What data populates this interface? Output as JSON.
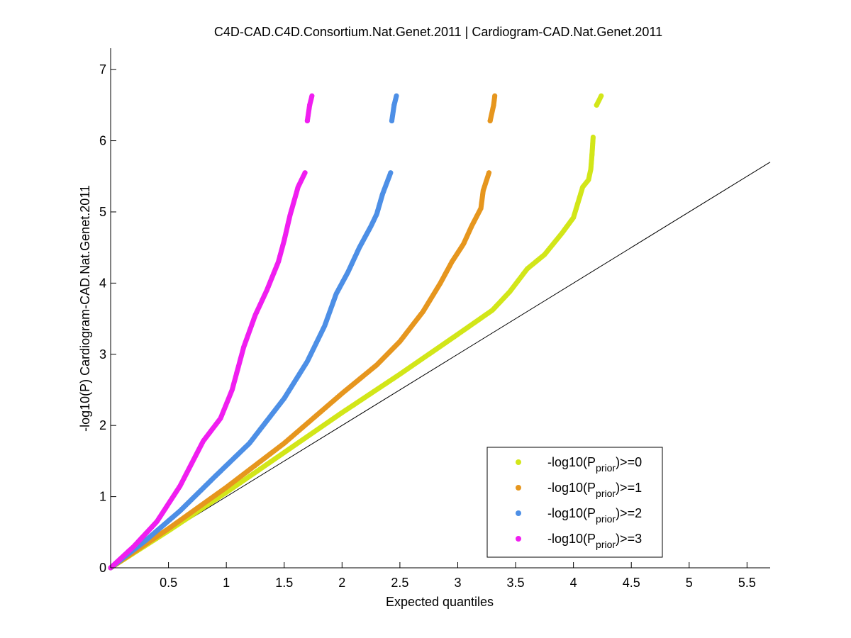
{
  "chart_data": {
    "type": "scatter",
    "title": "C4D-CAD.C4D.Consortium.Nat.Genet.2011 | Cardiogram-CAD.Nat.Genet.2011",
    "xlabel": "Expected quantiles",
    "ylabel": "-log10(P) Cardiogram-CAD.Nat.Genet.2011",
    "xlim": [
      0,
      5.7
    ],
    "ylim": [
      0,
      7.3
    ],
    "xticks": [
      0.5,
      1,
      1.5,
      2,
      2.5,
      3,
      3.5,
      4,
      4.5,
      5,
      5.5
    ],
    "xtick_labels": [
      "0.5",
      "1",
      "1.5",
      "2",
      "2.5",
      "3",
      "3.5",
      "4",
      "4.5",
      "5",
      "5.5"
    ],
    "yticks": [
      0,
      1,
      2,
      3,
      4,
      5,
      6,
      7
    ],
    "ytick_labels": [
      "0",
      "1",
      "2",
      "3",
      "4",
      "5",
      "6",
      "7"
    ],
    "grid": false,
    "legend_position": "bottom-right",
    "reference_line": {
      "x": [
        0,
        5.7
      ],
      "y": [
        0,
        5.7
      ],
      "color": "#000000"
    },
    "series": [
      {
        "name_main": "-log10(P",
        "name_sub": "prior",
        "name_tail": ")>=0",
        "color": "#d2e619",
        "points": [
          [
            0,
            0
          ],
          [
            0.5,
            0.52
          ],
          [
            1,
            1.06
          ],
          [
            1.5,
            1.62
          ],
          [
            2,
            2.18
          ],
          [
            2.5,
            2.72
          ],
          [
            3,
            3.28
          ],
          [
            3.3,
            3.62
          ],
          [
            3.45,
            3.88
          ],
          [
            3.6,
            4.2
          ],
          [
            3.75,
            4.4
          ],
          [
            3.9,
            4.7
          ],
          [
            4.0,
            4.92
          ],
          [
            4.08,
            5.35
          ],
          [
            4.13,
            5.45
          ],
          [
            4.15,
            5.6
          ],
          [
            4.16,
            5.8
          ],
          [
            4.17,
            6.05
          ],
          [
            4.2,
            6.5
          ],
          [
            4.24,
            6.63
          ]
        ]
      },
      {
        "name_main": "-log10(P",
        "name_sub": "prior",
        "name_tail": ")>=1",
        "color": "#e6961e",
        "points": [
          [
            0,
            0
          ],
          [
            0.5,
            0.55
          ],
          [
            1,
            1.13
          ],
          [
            1.5,
            1.75
          ],
          [
            2,
            2.45
          ],
          [
            2.3,
            2.85
          ],
          [
            2.5,
            3.18
          ],
          [
            2.7,
            3.6
          ],
          [
            2.85,
            4.0
          ],
          [
            2.95,
            4.3
          ],
          [
            3.05,
            4.55
          ],
          [
            3.12,
            4.8
          ],
          [
            3.2,
            5.05
          ],
          [
            3.22,
            5.3
          ],
          [
            3.27,
            5.55
          ],
          [
            3.28,
            6.28
          ],
          [
            3.31,
            6.5
          ],
          [
            3.32,
            6.63
          ]
        ]
      },
      {
        "name_main": "-log10(P",
        "name_sub": "prior",
        "name_tail": ")>=2",
        "color": "#4d8fe6",
        "points": [
          [
            0,
            0
          ],
          [
            0.3,
            0.38
          ],
          [
            0.6,
            0.8
          ],
          [
            0.9,
            1.28
          ],
          [
            1.2,
            1.75
          ],
          [
            1.5,
            2.38
          ],
          [
            1.7,
            2.9
          ],
          [
            1.85,
            3.4
          ],
          [
            1.95,
            3.85
          ],
          [
            2.05,
            4.15
          ],
          [
            2.15,
            4.5
          ],
          [
            2.25,
            4.8
          ],
          [
            2.3,
            4.97
          ],
          [
            2.35,
            5.25
          ],
          [
            2.42,
            5.55
          ],
          [
            2.43,
            6.28
          ],
          [
            2.45,
            6.5
          ],
          [
            2.47,
            6.63
          ]
        ]
      },
      {
        "name_main": "-log10(P",
        "name_sub": "prior",
        "name_tail": ")>=3",
        "color": "#f01ef0",
        "points": [
          [
            0,
            0
          ],
          [
            0.2,
            0.3
          ],
          [
            0.4,
            0.65
          ],
          [
            0.6,
            1.15
          ],
          [
            0.8,
            1.78
          ],
          [
            0.95,
            2.1
          ],
          [
            1.05,
            2.5
          ],
          [
            1.15,
            3.1
          ],
          [
            1.25,
            3.55
          ],
          [
            1.35,
            3.9
          ],
          [
            1.45,
            4.3
          ],
          [
            1.5,
            4.6
          ],
          [
            1.55,
            4.95
          ],
          [
            1.62,
            5.35
          ],
          [
            1.68,
            5.55
          ],
          [
            1.7,
            6.28
          ],
          [
            1.72,
            6.5
          ],
          [
            1.74,
            6.63
          ]
        ]
      }
    ]
  }
}
